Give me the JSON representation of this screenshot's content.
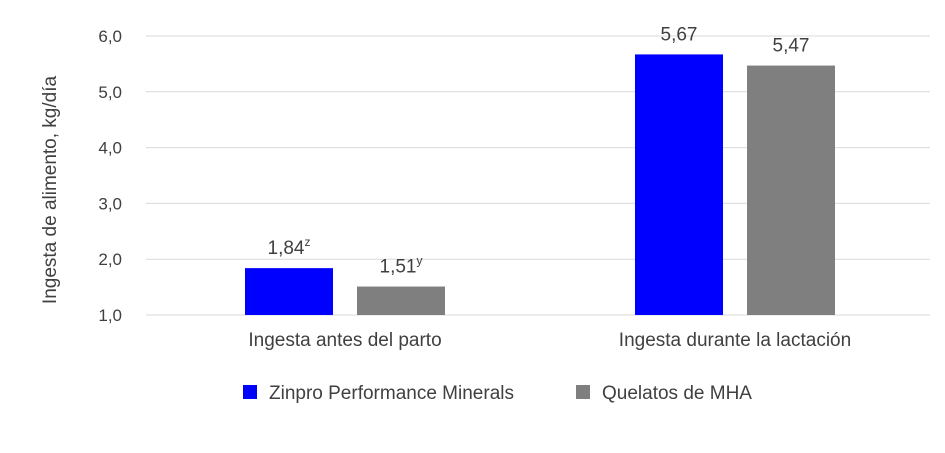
{
  "chart_data": {
    "type": "bar",
    "title": "",
    "xlabel": "",
    "ylabel": "Ingesta de alimento, kg/día",
    "ylim": [
      1.0,
      6.0
    ],
    "yticks": [
      "1,0",
      "2,0",
      "3,0",
      "4,0",
      "5,0",
      "6,0"
    ],
    "yticks_values": [
      1,
      2,
      3,
      4,
      5,
      6
    ],
    "grid": true,
    "legend_position": "bottom",
    "categories": [
      "Ingesta antes del parto",
      "Ingesta durante la lactación"
    ],
    "series": [
      {
        "name": "Zinpro Performance Minerals",
        "color": "#0000ff",
        "values": [
          1.84,
          5.67
        ],
        "labels": [
          "1,84",
          "5,67"
        ],
        "superscripts": [
          "z",
          ""
        ]
      },
      {
        "name": "Quelatos de MHA",
        "color": "#7f7f7f",
        "values": [
          1.51,
          5.47
        ],
        "labels": [
          "1,51",
          "5,47"
        ],
        "superscripts": [
          "y",
          ""
        ]
      }
    ]
  }
}
